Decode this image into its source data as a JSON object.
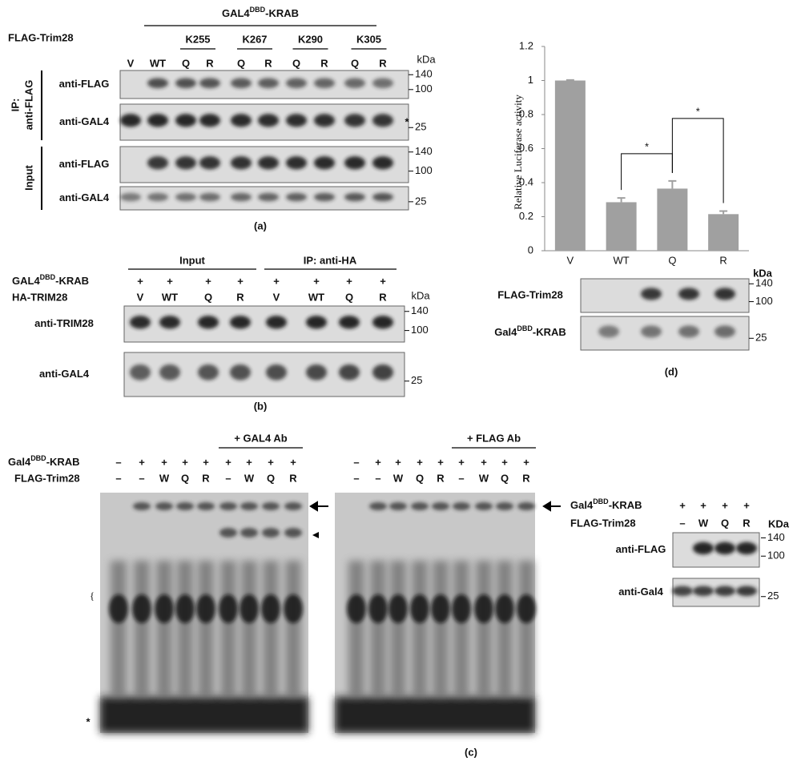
{
  "panel_a": {
    "construct": {
      "name": "GAL4",
      "sup": "DBD",
      "suffix": "-KRAB"
    },
    "row_label": "FLAG-Trim28",
    "mutants": [
      "K255",
      "K267",
      "K290",
      "K305"
    ],
    "lanes": [
      "V",
      "WT",
      "Q",
      "R",
      "Q",
      "R",
      "Q",
      "R",
      "Q",
      "R"
    ],
    "unit": "kDa",
    "ip_label": [
      "IP:",
      "anti-FLAG"
    ],
    "input_label": "Input",
    "blots": [
      {
        "antibody": "anti-FLAG",
        "markers": [
          140,
          100
        ]
      },
      {
        "antibody": "anti-GAL4",
        "markers": [
          25
        ],
        "note": "*"
      },
      {
        "antibody": "anti-FLAG",
        "markers": [
          140,
          100
        ]
      },
      {
        "antibody": "anti-GAL4",
        "markers": [
          25
        ]
      }
    ],
    "label": "(a)"
  },
  "panel_b": {
    "groups": [
      "Input",
      "IP: anti-HA"
    ],
    "rows": [
      {
        "label": {
          "name": "GAL4",
          "sup": "DBD",
          "suffix": "-KRAB"
        },
        "lanes": [
          "+",
          "+",
          "+",
          "+",
          "+",
          "+",
          "+",
          "+"
        ]
      },
      {
        "label": "HA-TRIM28",
        "lanes": [
          "V",
          "WT",
          "Q",
          "R",
          "V",
          "WT",
          "Q",
          "R"
        ]
      }
    ],
    "unit": "kDa",
    "blots": [
      {
        "antibody": "anti-TRIM28",
        "markers": [
          140,
          100
        ]
      },
      {
        "antibody": "anti-GAL4",
        "markers": [
          25
        ]
      }
    ],
    "label": "(b)"
  },
  "panel_c": {
    "row_labels": [
      {
        "name": "Gal4",
        "sup": "DBD",
        "suffix": "-KRAB"
      },
      "FLAG-Trim28"
    ],
    "gels": [
      {
        "header": "+ GAL4 Ab",
        "rows": [
          [
            "–",
            "+",
            "+",
            "+",
            "+",
            "+",
            "+",
            "+",
            "+"
          ],
          [
            "–",
            "–",
            "W",
            "Q",
            "R",
            "–",
            "W",
            "Q",
            "R"
          ]
        ]
      },
      {
        "header": "+ FLAG Ab",
        "rows": [
          [
            "–",
            "+",
            "+",
            "+",
            "+",
            "+",
            "+",
            "+",
            "+"
          ],
          [
            "–",
            "–",
            "W",
            "Q",
            "R",
            "–",
            "W",
            "Q",
            "R"
          ]
        ]
      }
    ],
    "brace": "{",
    "star": "*",
    "inset": {
      "rows": [
        {
          "label": {
            "name": "Gal4",
            "sup": "DBD",
            "suffix": "-KRAB"
          },
          "lanes": [
            "+",
            "+",
            "+",
            "+"
          ]
        },
        {
          "label": "FLAG-Trim28",
          "lanes": [
            "–",
            "W",
            "Q",
            "R"
          ]
        }
      ],
      "unit": "KDa",
      "blots": [
        {
          "antibody": "anti-FLAG",
          "markers": [
            140,
            100
          ]
        },
        {
          "antibody": "anti-Gal4",
          "markers": [
            25
          ]
        }
      ]
    },
    "label": "(c)"
  },
  "chart_data": {
    "type": "bar",
    "y_label": "Relative Luciferase activity",
    "categories": [
      "V",
      "WT",
      "Q",
      "R"
    ],
    "values": [
      1,
      0.285,
      0.365,
      0.215
    ],
    "errors": [
      0.003,
      0.025,
      0.045,
      0.018
    ],
    "color": "#a0a0a0",
    "ylim": [
      0,
      1.2
    ],
    "yticks": [
      0,
      0.2,
      0.4,
      0.6,
      0.8,
      1,
      1.2
    ],
    "comparisons": [
      {
        "label": "*",
        "categories": [
          "WT",
          "Q"
        ]
      },
      {
        "label": "*",
        "categories": [
          "Q",
          "R"
        ]
      }
    ]
  },
  "panel_d": {
    "unit": "kDa",
    "blots": [
      {
        "antibody": "FLAG-Trim28",
        "markers": [
          140,
          100
        ]
      },
      {
        "antibody": {
          "name": "Gal4",
          "sup": "DBD",
          "suffix": "-KRAB"
        },
        "markers": [
          25
        ]
      }
    ],
    "label": "(d)"
  }
}
